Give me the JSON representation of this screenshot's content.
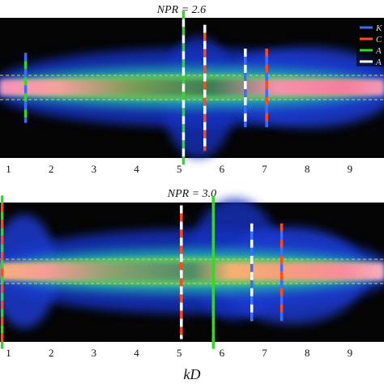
{
  "chart_data": [
    {
      "type": "heatmap",
      "title": "NPR = 2.6",
      "xlabel": "",
      "xlim": [
        0.8,
        9.8
      ],
      "ticks": [
        1,
        2,
        3,
        4,
        5,
        6,
        7,
        8,
        9
      ],
      "legend": {
        "placement": "top-right",
        "entries": [
          {
            "label": "K",
            "color": "#3b6cff"
          },
          {
            "label": "C",
            "color": "#ff4a1a"
          },
          {
            "label": "A",
            "color": "#37d62b"
          },
          {
            "label": "A",
            "color": "#ffffff"
          }
        ]
      },
      "markers": [
        {
          "x": 1.4,
          "colors": [
            "#3b6cff",
            "#37d62b"
          ],
          "y1": 0.25,
          "y2": 0.75
        },
        {
          "x": 5.1,
          "colors": [
            "#37d62b",
            "#ffffff"
          ],
          "y1": -0.05,
          "y2": 1.05
        },
        {
          "x": 5.6,
          "colors": [
            "#ffffff",
            "#ff4a1a"
          ],
          "y1": 0.05,
          "y2": 0.95
        },
        {
          "x": 6.55,
          "colors": [
            "#ffffff",
            "#3b6cff"
          ],
          "y1": 0.22,
          "y2": 0.78
        },
        {
          "x": 7.05,
          "colors": [
            "#ff4a1a",
            "#3b6cff"
          ],
          "y1": 0.22,
          "y2": 0.78
        }
      ]
    },
    {
      "type": "heatmap",
      "title": "NPR = 3.0",
      "xlabel": "kD",
      "xlim": [
        0.8,
        9.8
      ],
      "ticks": [
        1,
        2,
        3,
        4,
        5,
        6,
        7,
        8,
        9
      ],
      "markers": [
        {
          "x": 0.85,
          "colors": [
            "#37d62b",
            "#ff4a1a"
          ],
          "y1": -0.05,
          "y2": 1.05
        },
        {
          "x": 5.05,
          "colors": [
            "#ffffff",
            "#ff4a1a"
          ],
          "y1": 0.02,
          "y2": 0.98
        },
        {
          "x": 5.8,
          "colors": [
            "#37d62b",
            "#37d62b"
          ],
          "y1": -0.05,
          "y2": 1.05
        },
        {
          "x": 6.7,
          "colors": [
            "#ffffff",
            "#3b6cff"
          ],
          "y1": 0.15,
          "y2": 0.85
        },
        {
          "x": 7.4,
          "colors": [
            "#ff4a1a",
            "#3b6cff"
          ],
          "y1": 0.15,
          "y2": 0.85
        }
      ]
    }
  ]
}
